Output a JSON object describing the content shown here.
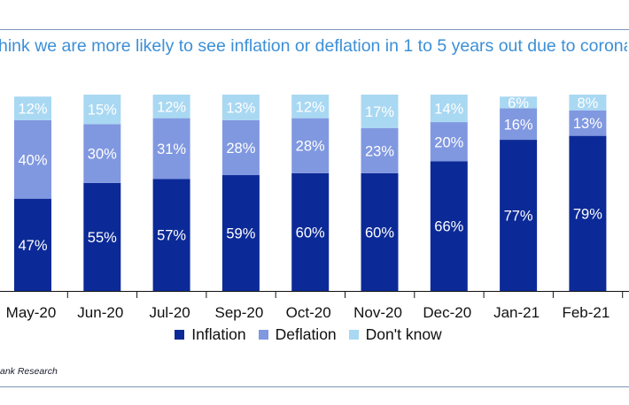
{
  "chart_data": {
    "type": "bar",
    "stacked": true,
    "title": "hink we are more likely to see inflation or deflation in 1 to 5 years out due to coronavirus",
    "categories": [
      "May-20",
      "Jun-20",
      "Jul-20",
      "Sep-20",
      "Oct-20",
      "Nov-20",
      "Dec-20",
      "Jan-21",
      "Feb-21"
    ],
    "series": [
      {
        "name": "Inflation",
        "color": "#0c2a97",
        "values": [
          47,
          55,
          57,
          59,
          60,
          60,
          66,
          77,
          79
        ],
        "label_color": "#ffffff"
      },
      {
        "name": "Deflation",
        "color": "#8098e0",
        "values": [
          40,
          30,
          31,
          28,
          28,
          23,
          20,
          16,
          13
        ],
        "label_color": "#ffffff"
      },
      {
        "name": "Don't know",
        "color": "#a9d8f2",
        "values": [
          12,
          15,
          12,
          13,
          12,
          17,
          14,
          6,
          8
        ],
        "label_color": "#ffffff"
      }
    ],
    "value_suffix": "%",
    "ylim": [
      0,
      100
    ],
    "legend_position": "bottom",
    "grid": false
  },
  "source": "ank Research"
}
